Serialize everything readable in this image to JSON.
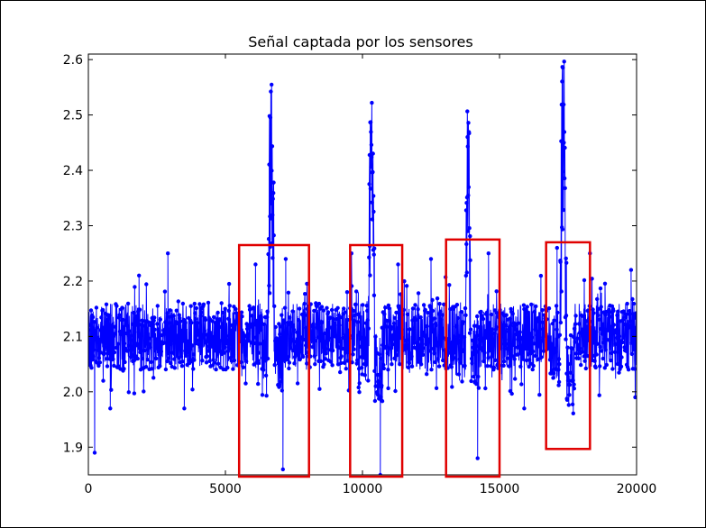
{
  "chart_data": {
    "type": "line",
    "title": "Señal captada por los sensores",
    "xlabel": "",
    "ylabel": "",
    "xlim": [
      0,
      20000
    ],
    "ylim": [
      1.85,
      2.61
    ],
    "xticks": [
      0,
      5000,
      10000,
      15000,
      20000
    ],
    "yticks": [
      1.9,
      2.0,
      2.1,
      2.2,
      2.3,
      2.4,
      2.5,
      2.6
    ],
    "xtick_labels": [
      "0",
      "5000",
      "10000",
      "15000",
      "20000"
    ],
    "ytick_labels": [
      "1.9",
      "2.0",
      "2.1",
      "2.2",
      "2.3",
      "2.4",
      "2.5",
      "2.6"
    ],
    "grid": false,
    "series_color": "#0000ff",
    "highlight_color": "#e00000",
    "series": [
      {
        "marker": "circle",
        "baseline_band": [
          2.04,
          2.16
        ],
        "sparse_spikes": [
          {
            "x": 230,
            "y": 1.89
          },
          {
            "x": 2900,
            "y": 2.25
          },
          {
            "x": 1850,
            "y": 2.21
          },
          {
            "x": 6100,
            "y": 2.23
          },
          {
            "x": 7100,
            "y": 1.86
          },
          {
            "x": 7200,
            "y": 2.24
          },
          {
            "x": 9600,
            "y": 2.25
          },
          {
            "x": 10650,
            "y": 1.85
          },
          {
            "x": 11300,
            "y": 2.23
          },
          {
            "x": 12500,
            "y": 2.24
          },
          {
            "x": 14200,
            "y": 1.88
          },
          {
            "x": 14600,
            "y": 2.25
          },
          {
            "x": 17100,
            "y": 2.26
          },
          {
            "x": 18300,
            "y": 2.25
          },
          {
            "x": 19800,
            "y": 2.22
          },
          {
            "x": 800,
            "y": 1.97
          },
          {
            "x": 3500,
            "y": 1.97
          },
          {
            "x": 15900,
            "y": 1.97
          }
        ],
        "events": [
          {
            "x_start": 6550,
            "x_end": 6800,
            "peak": 2.6,
            "dip": 1.97
          },
          {
            "x_start": 10200,
            "x_end": 10450,
            "peak": 2.54,
            "dip": 1.95
          },
          {
            "x_start": 13750,
            "x_end": 13950,
            "peak": 2.52,
            "dip": 1.96
          },
          {
            "x_start": 17200,
            "x_end": 17450,
            "peak": 2.61,
            "dip": 1.93
          }
        ]
      }
    ],
    "highlight_boxes": [
      {
        "x_range": [
          5500,
          8050
        ],
        "y_range": [
          1.85,
          2.265
        ]
      },
      {
        "x_range": [
          9550,
          11450
        ],
        "y_range": [
          1.85,
          2.265
        ]
      },
      {
        "x_range": [
          13050,
          15000
        ],
        "y_range": [
          1.85,
          2.275
        ]
      },
      {
        "x_range": [
          16700,
          18300
        ],
        "y_range": [
          1.9,
          2.27
        ]
      }
    ]
  }
}
